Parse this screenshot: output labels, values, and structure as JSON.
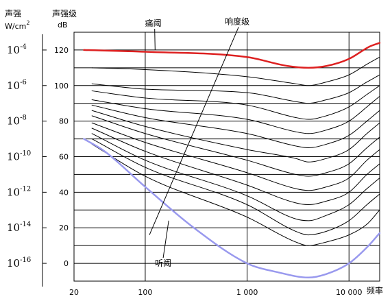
{
  "header": {
    "intensity_title": "声强",
    "intensity_unit_base": "W/cm",
    "intensity_unit_exp": "2",
    "level_title": "声强级",
    "level_unit": "dB"
  },
  "chart_data": {
    "type": "line",
    "x_scale": "log",
    "xlim": [
      20,
      20000
    ],
    "ylim": [
      -10,
      130
    ],
    "xlabel": "频率",
    "x_ticks": [
      {
        "value": 20,
        "label": "20"
      },
      {
        "value": 100,
        "label": "100"
      },
      {
        "value": 1000,
        "label": "1 000"
      },
      {
        "value": 10000,
        "label": "10 000"
      }
    ],
    "y_ticks": [
      0,
      20,
      40,
      60,
      80,
      100,
      120
    ],
    "y_gridlines": [
      0,
      10,
      20,
      30,
      40,
      50,
      60,
      70,
      80,
      90,
      100,
      110,
      120
    ],
    "x_gridlines": [
      100,
      1000,
      10000
    ],
    "intensity_ticks": [
      {
        "base": "10",
        "exp": "-4",
        "level": 120
      },
      {
        "base": "10",
        "exp": "-6",
        "level": 100
      },
      {
        "base": "10",
        "exp": "-8",
        "level": 80
      },
      {
        "base": "10",
        "exp": "-10",
        "level": 60
      },
      {
        "base": "10",
        "exp": "-12",
        "level": 40
      },
      {
        "base": "10",
        "exp": "-14",
        "level": 20
      },
      {
        "base": "10",
        "exp": "-16",
        "level": 0
      }
    ],
    "series": [
      {
        "name": "痛阈",
        "color": "#dd2020",
        "width": 2.5,
        "x": [
          25,
          100,
          1000,
          2500,
          4000,
          6000,
          10000,
          16000,
          20000
        ],
        "y": [
          120,
          119,
          116,
          111,
          110,
          111,
          115,
          122,
          124
        ]
      },
      {
        "color": "#000000",
        "width": 1,
        "x": [
          30,
          100,
          1000,
          3000,
          4000,
          6000,
          10000,
          15000,
          20000
        ],
        "y": [
          110,
          109,
          105,
          101,
          100,
          102,
          106,
          112,
          116
        ]
      },
      {
        "color": "#000000",
        "width": 1,
        "x": [
          30,
          100,
          1000,
          3000,
          4000,
          6000,
          10000,
          15000,
          20000
        ],
        "y": [
          101,
          98,
          96,
          91,
          90,
          92,
          96,
          102,
          106
        ]
      },
      {
        "color": "#000000",
        "width": 1,
        "x": [
          30,
          100,
          1000,
          3000,
          4000,
          6000,
          10000,
          15000,
          20000
        ],
        "y": [
          97,
          93,
          89,
          82,
          81,
          83,
          88,
          95,
          100
        ]
      },
      {
        "color": "#000000",
        "width": 1,
        "x": [
          30,
          100,
          1000,
          3000,
          4000,
          6000,
          10000,
          15000,
          20000
        ],
        "y": [
          92,
          87,
          81,
          74,
          73,
          75,
          80,
          88,
          94
        ]
      },
      {
        "color": "#000000",
        "width": 1,
        "x": [
          30,
          100,
          1000,
          3000,
          4000,
          6000,
          10000,
          15000,
          20000
        ],
        "y": [
          89,
          82,
          73,
          66,
          65,
          67,
          72,
          80,
          86
        ]
      },
      {
        "color": "#000000",
        "width": 1,
        "x": [
          30,
          100,
          1000,
          3000,
          4000,
          6000,
          10000,
          15000,
          20000
        ],
        "y": [
          86,
          77,
          64,
          59,
          57,
          59,
          64,
          73,
          79
        ]
      },
      {
        "color": "#000000",
        "width": 1,
        "x": [
          30,
          100,
          1000,
          3000,
          4000,
          6000,
          10000,
          15000,
          20000
        ],
        "y": [
          83,
          73,
          58,
          50,
          49,
          51,
          56,
          65,
          71
        ]
      },
      {
        "color": "#000000",
        "width": 1,
        "x": [
          30,
          100,
          1000,
          3000,
          4000,
          6000,
          10000,
          15000,
          20000
        ],
        "y": [
          79,
          68,
          51,
          42,
          41,
          43,
          48,
          58,
          64
        ]
      },
      {
        "color": "#000000",
        "width": 1,
        "x": [
          30,
          100,
          1000,
          3000,
          4000,
          6000,
          10000,
          15000,
          20000
        ],
        "y": [
          76,
          63,
          44,
          34,
          33,
          35,
          40,
          50,
          56
        ]
      },
      {
        "color": "#000000",
        "width": 1,
        "x": [
          30,
          100,
          1000,
          3000,
          4000,
          6000,
          10000,
          15000,
          20000
        ],
        "y": [
          73,
          58,
          38,
          25,
          24,
          27,
          33,
          42,
          48
        ]
      },
      {
        "color": "#000000",
        "width": 1,
        "x": [
          30,
          100,
          1000,
          3000,
          4000,
          6000,
          10000,
          15000,
          20000
        ],
        "y": [
          70,
          54,
          33,
          18,
          16,
          18,
          24,
          33,
          39
        ]
      },
      {
        "color": "#000000",
        "width": 1,
        "x": [
          30,
          100,
          1000,
          3000,
          4000,
          6000,
          10000,
          15000,
          20000
        ],
        "y": [
          67,
          49,
          26,
          12,
          10,
          12,
          16,
          22,
          30
        ]
      },
      {
        "name": "听阈",
        "color": "#9999ee",
        "width": 2.5,
        "x": [
          25,
          40,
          100,
          300,
          1000,
          2000,
          4000,
          6000,
          10000,
          15000,
          20000
        ],
        "y": [
          70,
          63,
          43,
          20,
          0,
          -5,
          -8,
          -6,
          0,
          9,
          17
        ]
      }
    ],
    "annotations": [
      {
        "text": "痛阈",
        "label_x": 120,
        "label_y": 135,
        "target_x": 125,
        "target_y": 120
      },
      {
        "text": "响度级",
        "label_x": 800,
        "label_y": 136,
        "target_x": 110,
        "target_y": 16
      },
      {
        "text": "听阈",
        "label_x": 150,
        "label_y": 0,
        "target_x": 170,
        "target_y": 24
      }
    ]
  }
}
